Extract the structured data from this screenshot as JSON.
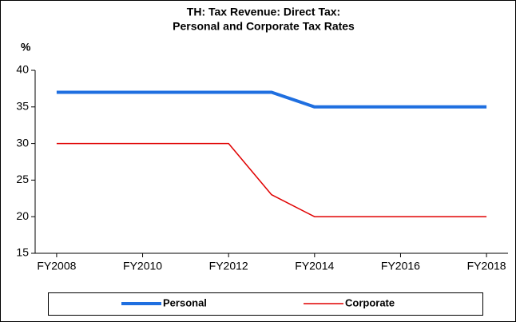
{
  "chart_data": {
    "type": "line",
    "title": [
      "TH: Tax Revenue: Direct Tax:",
      "Personal and Corporate Tax Rates"
    ],
    "y_label": "%",
    "categories": [
      "FY2008",
      null,
      "FY2010",
      null,
      "FY2012",
      null,
      "FY2014",
      null,
      "FY2016",
      null,
      "FY2018"
    ],
    "series": [
      {
        "name": "Personal",
        "color": "#1f6fe0",
        "values": [
          37,
          37,
          37,
          37,
          37,
          37,
          35,
          35,
          35,
          35,
          35
        ]
      },
      {
        "name": "Corporate",
        "color": "#e00000",
        "values": [
          30,
          30,
          30,
          30,
          30,
          23,
          20,
          20,
          20,
          20,
          20
        ]
      }
    ],
    "ylim": [
      15,
      40
    ],
    "yticks": [
      15,
      20,
      25,
      30,
      35,
      40
    ],
    "grid": false,
    "legend": "bottom"
  }
}
